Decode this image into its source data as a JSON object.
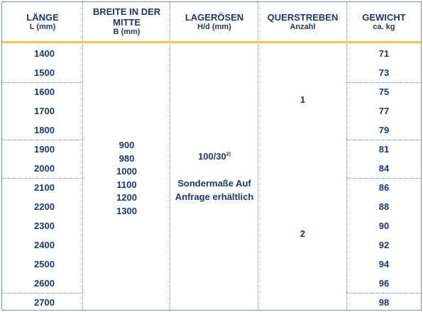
{
  "headers": [
    {
      "title": "LÄNGE",
      "sub": "L (mm)"
    },
    {
      "title": "BREITE IN DER MITTE",
      "sub": "B (mm)"
    },
    {
      "title": "LAGERÖSEN",
      "sub": "H/d (mm)"
    },
    {
      "title": "QUERSTREBEN",
      "sub": "Anzahl"
    },
    {
      "title": "GEWICHT",
      "sub": "ca. kg"
    }
  ],
  "lengths": [
    "1400",
    "1500",
    "1600",
    "1700",
    "1800",
    "1900",
    "2000",
    "2100",
    "2200",
    "2300",
    "2400",
    "2500",
    "2600",
    "2700"
  ],
  "weights": [
    "71",
    "73",
    "75",
    "77",
    "79",
    "81",
    "84",
    "86",
    "88",
    "90",
    "92",
    "94",
    "96",
    "98"
  ],
  "widths": [
    "900",
    "980",
    "1000",
    "1100",
    "1200",
    "1300"
  ],
  "lageroesen": {
    "value": "100/30",
    "footnote": "2)",
    "note_line1": "Sondermaße Auf",
    "note_line2": "Anfrage erhältlich"
  },
  "querstreben": {
    "group1": "1",
    "group2": "2"
  }
}
